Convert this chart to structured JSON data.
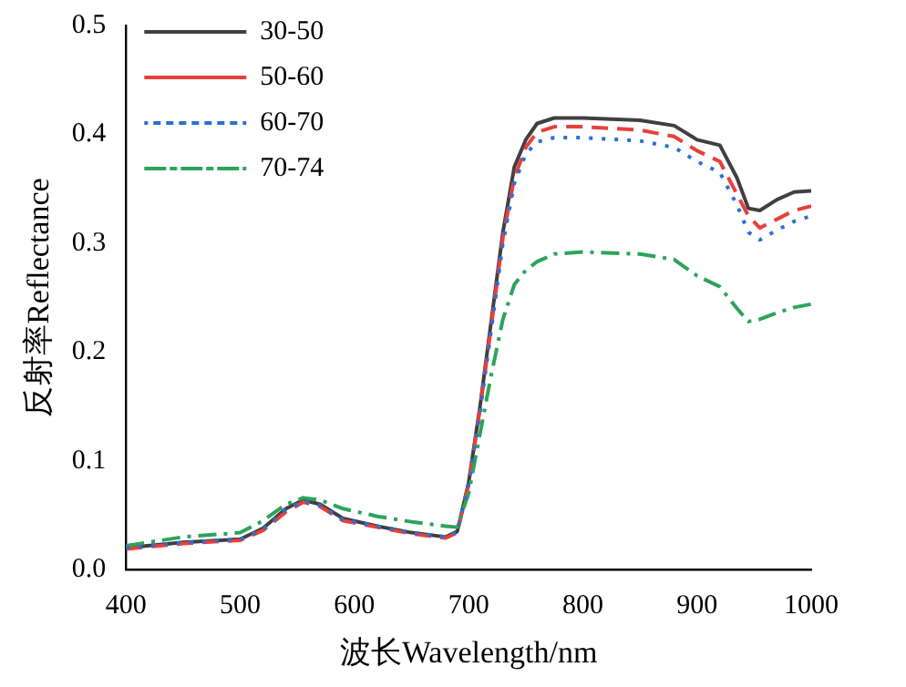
{
  "chart_data": {
    "type": "line",
    "xlabel": "波长Wavelength/nm",
    "ylabel": "反射率Reflectance",
    "xlim": [
      400,
      1000
    ],
    "xticks": [
      400,
      500,
      600,
      700,
      800,
      900,
      1000
    ],
    "ylim": [
      0,
      0.5
    ],
    "yticks": [
      {
        "value": 0,
        "label": "0.0"
      },
      0.1,
      0.2,
      0.3,
      0.4,
      0.5
    ],
    "grid": false,
    "legend": "top left",
    "marker": "none",
    "x": [
      400,
      450,
      500,
      520,
      540,
      555,
      570,
      590,
      620,
      650,
      680,
      690,
      700,
      710,
      720,
      730,
      740,
      750,
      760,
      775,
      800,
      850,
      880,
      900,
      920,
      935,
      945,
      955,
      970,
      985,
      1000
    ],
    "series": [
      {
        "name": "30-50",
        "color": "#404040",
        "line_style": "solid",
        "values": [
          0.02,
          0.025,
          0.028,
          0.038,
          0.056,
          0.064,
          0.06,
          0.047,
          0.04,
          0.034,
          0.03,
          0.035,
          0.08,
          0.15,
          0.23,
          0.31,
          0.37,
          0.395,
          0.41,
          0.415,
          0.415,
          0.413,
          0.408,
          0.395,
          0.39,
          0.36,
          0.332,
          0.33,
          0.34,
          0.347,
          0.348
        ]
      },
      {
        "name": "50-60",
        "color": "#e8403c",
        "line_style": "dashed",
        "values": [
          0.019,
          0.024,
          0.027,
          0.036,
          0.053,
          0.062,
          0.058,
          0.045,
          0.039,
          0.033,
          0.029,
          0.034,
          0.078,
          0.148,
          0.225,
          0.305,
          0.36,
          0.388,
          0.402,
          0.407,
          0.407,
          0.404,
          0.398,
          0.385,
          0.375,
          0.345,
          0.325,
          0.314,
          0.322,
          0.33,
          0.334
        ]
      },
      {
        "name": "60-70",
        "color": "#2a6fd6",
        "line_style": "dotted",
        "values": [
          0.02,
          0.025,
          0.028,
          0.037,
          0.055,
          0.063,
          0.059,
          0.046,
          0.04,
          0.034,
          0.03,
          0.035,
          0.079,
          0.145,
          0.222,
          0.3,
          0.355,
          0.382,
          0.393,
          0.397,
          0.397,
          0.394,
          0.388,
          0.375,
          0.365,
          0.335,
          0.31,
          0.303,
          0.312,
          0.32,
          0.325
        ]
      },
      {
        "name": "70-74",
        "color": "#2ea35a",
        "line_style": "dashdot",
        "values": [
          0.022,
          0.03,
          0.034,
          0.045,
          0.06,
          0.066,
          0.064,
          0.056,
          0.049,
          0.044,
          0.04,
          0.039,
          0.07,
          0.125,
          0.18,
          0.23,
          0.262,
          0.275,
          0.283,
          0.29,
          0.292,
          0.29,
          0.285,
          0.27,
          0.26,
          0.24,
          0.228,
          0.23,
          0.236,
          0.241,
          0.244
        ]
      }
    ]
  }
}
